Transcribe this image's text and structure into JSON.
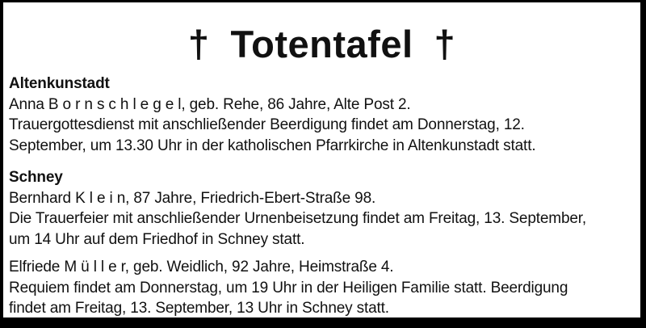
{
  "header": {
    "cross_left": "†",
    "title": "Totentafel",
    "cross_right": "†"
  },
  "sections": [
    {
      "heading": "Altenkunstadt",
      "entries": [
        {
          "lines": [
            "Anna B o r n s c h l e g e l, geb. Rehe, 86 Jahre, Alte Post 2.",
            "Trauergottesdienst mit anschließender Beerdigung findet am Donnerstag, 12.",
            "September, um 13.30 Uhr in der katholischen Pfarrkirche in Altenkunstadt statt."
          ]
        }
      ]
    },
    {
      "heading": "Schney",
      "entries": [
        {
          "lines": [
            "Bernhard K l e i n, 87 Jahre, Friedrich-Ebert-Straße 98.",
            "Die Trauerfeier mit anschließender Urnenbeisetzung findet am Freitag, 13. September,",
            "um 14 Uhr auf dem Friedhof in Schney statt."
          ]
        },
        {
          "lines": [
            "Elfriede M ü l l e r, geb. Weidlich, 92 Jahre, Heimstraße 4.",
            "Requiem findet am Donnerstag, um 19 Uhr in der Heiligen Familie statt. Beerdigung",
            "findet am Freitag, 13. September, 13 Uhr in Schney statt."
          ]
        }
      ]
    }
  ],
  "colors": {
    "frame": "#000000",
    "paper": "#ffffff",
    "ink": "#111111"
  }
}
